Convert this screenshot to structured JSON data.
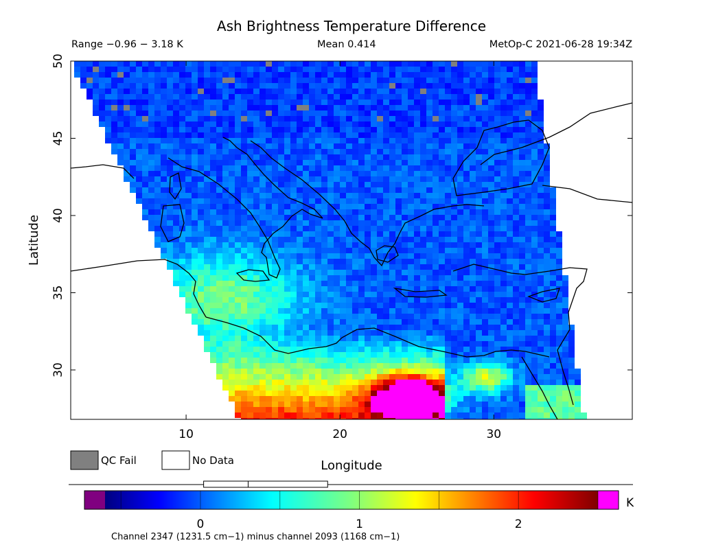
{
  "header": {
    "title": "Ash Brightness Temperature Difference",
    "range_text": "Range −0.96 − 3.18 K",
    "mean_text": "Mean 0.414",
    "satellite_text": "MetOp-C 2021-06-28 19:34Z"
  },
  "map": {
    "lon_range": [
      2.5,
      39.0
    ],
    "lat_range": [
      26.8,
      50.0
    ],
    "x_axis": {
      "label": "Longitude",
      "ticks": [
        10,
        20,
        30
      ],
      "tick_labels": [
        "10",
        "20",
        "30"
      ]
    },
    "y_axis": {
      "label": "Latitude",
      "ticks": [
        30,
        35,
        40,
        45,
        50
      ],
      "tick_labels": [
        "30",
        "35",
        "40",
        "45",
        "50"
      ]
    },
    "swath_color_note": "mostly blue; yellow-green over Tunisia/Libya; orange-red-magenta over Libya/Egypt desert",
    "colors": {
      "coastline": "#000000",
      "no_data": "#ffffff",
      "qc_fail": "#808080"
    }
  },
  "legend": {
    "qc_fail_label": "QC Fail",
    "no_data_label": "No Data"
  },
  "colorbar": {
    "unit": "K",
    "min": -0.6,
    "max": 2.5,
    "ticks": [
      0,
      1,
      2
    ],
    "tick_labels": [
      "0",
      "1",
      "2"
    ],
    "under_color": "#800080",
    "over_color": "#ff00ff",
    "caption": "Channel 2347 (1231.5 cm−1) minus channel 2093 (1168 cm−1)",
    "histogram_box": {
      "q1": 0.02,
      "median": 0.3,
      "q3": 0.8
    }
  }
}
